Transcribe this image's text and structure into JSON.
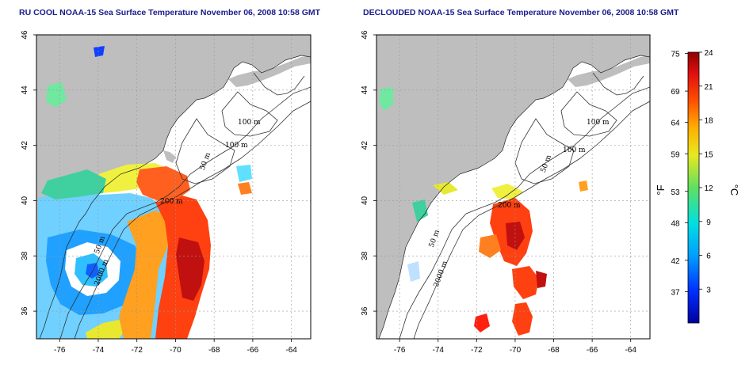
{
  "left_panel": {
    "title": "RU COOL NOAA-15 Sea Surface Temperature November 06, 2008 10:58 GMT"
  },
  "right_panel": {
    "title": "DECLOUDED NOAA-15 Sea Surface Temperature November 06, 2008 10:58 GMT"
  },
  "map_axes": {
    "x_ticks": [
      -76,
      -74,
      -72,
      -70,
      -68,
      -66,
      -64
    ],
    "x_labels": [
      "-76",
      "-74",
      "-72",
      "-70",
      "-68",
      "-66",
      "-64"
    ],
    "y_ticks": [
      36,
      38,
      40,
      42,
      44,
      46
    ],
    "y_labels": [
      "36",
      "38",
      "40",
      "42",
      "44",
      "46"
    ],
    "lon_range": [
      -77.2,
      -63.0
    ],
    "lat_range": [
      35.0,
      46.0
    ]
  },
  "contour_labels": {
    "left": [
      "100 m",
      "100 m",
      "50 m",
      "200 m",
      "50 m",
      "2000 m"
    ],
    "right": [
      "100 m",
      "100 m",
      "50 m",
      "200 m",
      "50 m",
      "2000 m"
    ]
  },
  "colorbar": {
    "f_unit": "°F",
    "c_unit": "°C",
    "fahrenheit_ticks": [
      "75",
      "69",
      "64",
      "59",
      "53",
      "48",
      "42",
      "37"
    ],
    "celsius_ticks": [
      "24",
      "21",
      "18",
      "15",
      "12",
      "9",
      "6",
      "3"
    ],
    "c_range": [
      0,
      24
    ],
    "f_values": [
      75,
      69,
      64,
      59,
      53,
      48,
      42,
      37
    ],
    "c_values": [
      24,
      21,
      18,
      15,
      12,
      9,
      6,
      3
    ]
  },
  "colors": {
    "land": "#bebebe",
    "ocean_nodata": "#ffffff",
    "title_blue": "#1a1a8c",
    "gridline": "#9a9a9a"
  }
}
